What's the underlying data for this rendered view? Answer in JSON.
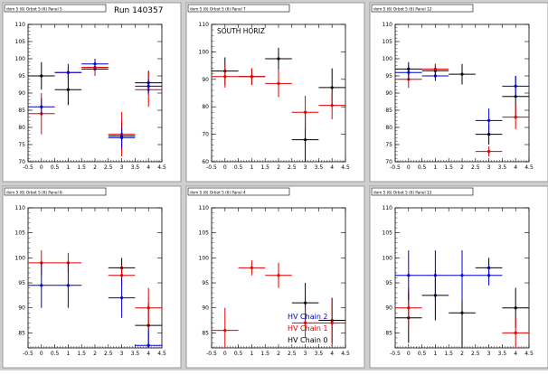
{
  "figure": {
    "background": "#cfcfcf",
    "colors": {
      "red": "#e00000",
      "blue": "#0000d0",
      "black": "#000000"
    }
  },
  "chart_data": [
    {
      "id": "p1",
      "type": "scatter",
      "title": "dom 5 (6) Orbot 5 (6) Panel 5",
      "run_label": "Run 140357",
      "xlim": [
        -0.5,
        4.5
      ],
      "ylim": [
        70,
        110
      ],
      "xticks": [
        "-0.5",
        "0",
        "0.5",
        "1",
        "1.5",
        "2",
        "2.5",
        "3",
        "3.5",
        "4",
        "4.5"
      ],
      "yticks": [
        "70",
        "75",
        "80",
        "85",
        "90",
        "95",
        "100",
        "105",
        "110"
      ],
      "series": [
        {
          "color": "black",
          "points": [
            [
              0,
              95,
              0.5,
              4
            ],
            [
              1,
              91,
              0.5,
              4.5
            ],
            [
              2,
              97,
              0.5,
              2
            ],
            [
              3,
              77.5,
              0.5,
              4
            ],
            [
              4,
              93,
              0.5,
              3.5
            ]
          ]
        },
        {
          "color": "red",
          "points": [
            [
              0,
              84,
              0.5,
              6
            ],
            [
              1,
              96,
              0.5,
              1.5
            ],
            [
              2,
              97.5,
              0.5,
              2.5
            ],
            [
              3,
              78,
              0.5,
              6.5
            ],
            [
              4,
              91,
              0.5,
              5
            ]
          ]
        },
        {
          "color": "blue",
          "points": [
            [
              0,
              86,
              0.5,
              2.5
            ],
            [
              1,
              96,
              0.5,
              2.5
            ],
            [
              2,
              98.5,
              0.5,
              1.5
            ],
            [
              3,
              77,
              0.5,
              3
            ],
            [
              4,
              92,
              0.5,
              2
            ]
          ]
        }
      ]
    },
    {
      "id": "p2",
      "type": "scatter",
      "title": "dom 5 (6) Orbot 5 (6) Panel 7",
      "annotation": "SOUTH HORIZ",
      "xlim": [
        -0.5,
        4.5
      ],
      "ylim": [
        60,
        110
      ],
      "xticks": [
        "-0.5",
        "0",
        "0.5",
        "1",
        "1.5",
        "2",
        "2.5",
        "3",
        "3.5",
        "4",
        "4.5"
      ],
      "yticks": [
        "60",
        "70",
        "80",
        "90",
        "100",
        "110"
      ],
      "series": [
        {
          "color": "black",
          "points": [
            [
              0,
              93,
              0.5,
              5
            ],
            [
              1,
              91,
              0.5,
              3
            ],
            [
              2,
              97.5,
              0.5,
              4
            ],
            [
              3,
              68,
              0.5,
              10
            ],
            [
              4,
              87,
              0.5,
              7
            ]
          ]
        },
        {
          "color": "red",
          "points": [
            [
              0,
              91,
              0.5,
              4
            ],
            [
              1,
              91,
              0.5,
              3
            ],
            [
              2,
              88.5,
              0.5,
              5
            ],
            [
              3,
              78,
              0.5,
              6
            ],
            [
              4,
              80.5,
              0.5,
              5
            ]
          ]
        }
      ]
    },
    {
      "id": "p3",
      "type": "scatter",
      "title": "dom 5 (6) Orbot 5 (6) Panel 12",
      "xlim": [
        -0.5,
        4.5
      ],
      "ylim": [
        70,
        110
      ],
      "xticks": [
        "-0.5",
        "0",
        "0.5",
        "1",
        "1.5",
        "2",
        "2.5",
        "3",
        "3.5",
        "4",
        "4.5"
      ],
      "yticks": [
        "70",
        "75",
        "80",
        "85",
        "90",
        "95",
        "100",
        "105",
        "110"
      ],
      "series": [
        {
          "color": "black",
          "points": [
            [
              0,
              97,
              0.5,
              2
            ],
            [
              1,
              96.5,
              0.5,
              2
            ],
            [
              2,
              95.5,
              0.5,
              3
            ],
            [
              3,
              78,
              0.5,
              3
            ],
            [
              4,
              89,
              0.5,
              6
            ]
          ]
        },
        {
          "color": "red",
          "points": [
            [
              0,
              94,
              0.5,
              2.5
            ],
            [
              1,
              97,
              0.5,
              1.5
            ],
            [
              3,
              73,
              0.5,
              1.5
            ],
            [
              4,
              83,
              0.5,
              3.5
            ]
          ]
        },
        {
          "color": "blue",
          "points": [
            [
              0,
              96,
              0.5,
              2
            ],
            [
              1,
              95,
              0.5,
              1.5
            ],
            [
              3,
              82,
              0.5,
              3.5
            ],
            [
              4,
              92,
              0.5,
              3
            ]
          ]
        }
      ]
    },
    {
      "id": "p4",
      "type": "scatter",
      "title": "dom 5 (6) Orbot 5 (6) Panel 8",
      "xlim": [
        -0.5,
        4.5
      ],
      "ylim": [
        82,
        110
      ],
      "xticks": [
        "-0.5",
        "0",
        "0.5",
        "1",
        "1.5",
        "2",
        "2.5",
        "3",
        "3.5",
        "4",
        "4.5"
      ],
      "yticks": [
        "85",
        "90",
        "95",
        "100",
        "105",
        "110"
      ],
      "series": [
        {
          "color": "black",
          "points": [
            [
              3,
              98,
              0.5,
              2
            ],
            [
              4,
              86.5,
              0.5,
              4.5
            ]
          ]
        },
        {
          "color": "red",
          "points": [
            [
              0,
              99,
              0.5,
              2.5
            ],
            [
              1,
              99,
              0.5,
              2
            ],
            [
              3,
              96.5,
              0.5,
              2
            ],
            [
              4,
              90,
              0.5,
              4
            ]
          ]
        },
        {
          "color": "blue",
          "points": [
            [
              0,
              94.5,
              0.5,
              4.5
            ],
            [
              1,
              94.5,
              0.5,
              4.5
            ],
            [
              3,
              92,
              0.5,
              4
            ],
            [
              4,
              82.5,
              0.5,
              3
            ]
          ]
        }
      ]
    },
    {
      "id": "p5",
      "type": "scatter",
      "title": "dom 5 (6) Orbot 5 (6) Panel 4",
      "xlim": [
        -0.5,
        4.5
      ],
      "ylim": [
        82,
        110
      ],
      "xticks": [
        "-0.5",
        "0",
        "0.5",
        "1",
        "1.5",
        "2",
        "2.5",
        "3",
        "3.5",
        "4",
        "4.5"
      ],
      "yticks": [
        "85",
        "90",
        "95",
        "100",
        "105",
        "110"
      ],
      "legend": [
        "HV Chain 2",
        "HV Chain 1",
        "HV Chain 0"
      ],
      "legend_colors": [
        "blue",
        "red",
        "black"
      ],
      "series": [
        {
          "color": "black",
          "points": [
            [
              3,
              91,
              0.5,
              4
            ],
            [
              4,
              87.5,
              0.5,
              4.5
            ]
          ]
        },
        {
          "color": "red",
          "points": [
            [
              0,
              85.5,
              0.5,
              4.5
            ],
            [
              1,
              98,
              0.5,
              1.5
            ],
            [
              2,
              96.5,
              0.5,
              2.5
            ],
            [
              3,
              87,
              0.5,
              3
            ],
            [
              4,
              87,
              0.5,
              5
            ]
          ]
        }
      ]
    },
    {
      "id": "p6",
      "type": "scatter",
      "title": "dom 5 (6) Orbot 5 (6) Panel 13",
      "xlim": [
        -0.5,
        4.5
      ],
      "ylim": [
        82,
        110
      ],
      "xticks": [
        "-0.5",
        "0",
        "0.5",
        "1",
        "1.5",
        "2",
        "2.5",
        "3",
        "3.5",
        "4",
        "4.5"
      ],
      "yticks": [
        "85",
        "90",
        "95",
        "100",
        "105",
        "110"
      ],
      "series": [
        {
          "color": "black",
          "points": [
            [
              0,
              88,
              0.5,
              5
            ],
            [
              1,
              92.5,
              0.5,
              5
            ],
            [
              2,
              89,
              0.5,
              7
            ],
            [
              3,
              98,
              0.5,
              2
            ],
            [
              4,
              90,
              0.5,
              4
            ]
          ]
        },
        {
          "color": "red",
          "points": [
            [
              0,
              90,
              0.5,
              4
            ],
            [
              4,
              85,
              0.5,
              3
            ]
          ]
        },
        {
          "color": "blue",
          "points": [
            [
              0,
              96.5,
              0.5,
              5
            ],
            [
              1,
              96.5,
              0.5,
              5
            ],
            [
              2,
              96.5,
              0.5,
              5
            ],
            [
              3,
              96.5,
              0.5,
              2
            ]
          ]
        }
      ]
    }
  ]
}
